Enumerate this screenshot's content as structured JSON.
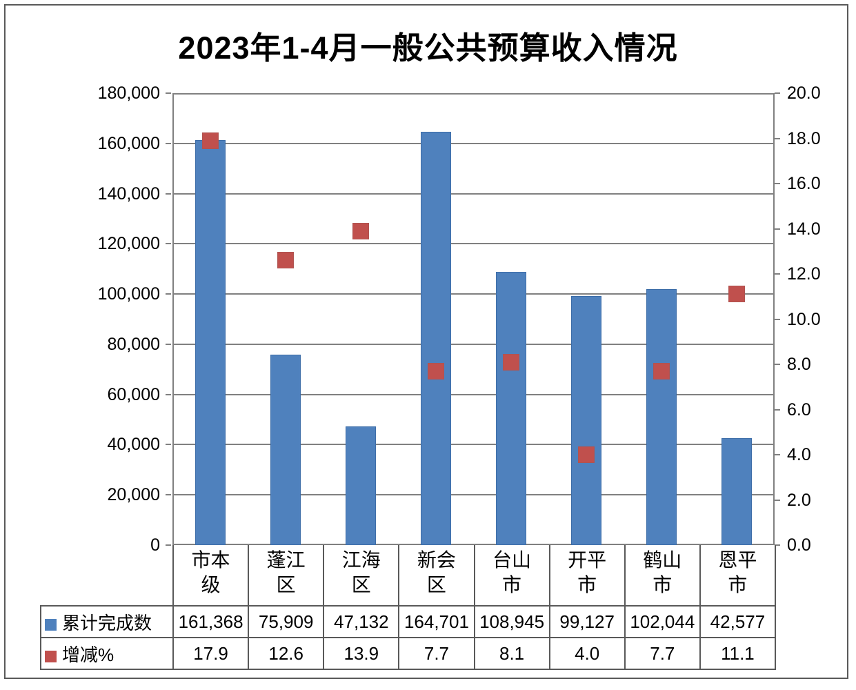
{
  "title": "2023年1-4月一般公共预算收入情况",
  "chart_data": {
    "type": "bar",
    "subtype": "combo-bar-with-square-markers-and-data-table",
    "title": "2023年1-4月一般公共预算收入情况",
    "categories": [
      "市本级",
      "蓬江区",
      "江海区",
      "新会区",
      "台山市",
      "开平市",
      "鹤山市",
      "恩平市"
    ],
    "categories_display": [
      "市本\n级",
      "蓬江\n区",
      "江海\n区",
      "新会\n区",
      "台山\n市",
      "开平\n市",
      "鹤山\n市",
      "恩平\n市"
    ],
    "series": [
      {
        "name": "累计完成数",
        "type": "bar",
        "axis": "left",
        "color": "#4F81BD",
        "values": [
          161368,
          75909,
          47132,
          164701,
          108945,
          99127,
          102044,
          42577
        ]
      },
      {
        "name": "增减%",
        "type": "scatter-square",
        "axis": "right",
        "color": "#C0504D",
        "values": [
          17.9,
          12.6,
          13.9,
          7.7,
          8.1,
          4.0,
          7.7,
          11.1
        ]
      }
    ],
    "left_axis": {
      "min": 0,
      "max": 180000,
      "step": 20000,
      "tick_labels": [
        "180,000",
        "160,000",
        "140,000",
        "120,000",
        "100,000",
        "80,000",
        "60,000",
        "40,000",
        "20,000",
        "0"
      ]
    },
    "right_axis": {
      "min": 0.0,
      "max": 20.0,
      "step": 2.0,
      "tick_labels": [
        "20.0",
        "18.0",
        "16.0",
        "14.0",
        "12.0",
        "10.0",
        "8.0",
        "6.0",
        "4.0",
        "2.0",
        "0.0"
      ]
    },
    "grid": true,
    "legend_position": "in-data-table-left"
  },
  "data_table": {
    "rows": [
      {
        "label": "累计完成数",
        "swatch_color": "#4F81BD",
        "values": [
          "161,368",
          "75,909",
          "47,132",
          "164,701",
          "108,945",
          "99,127",
          "102,044",
          "42,577"
        ]
      },
      {
        "label": "增减%",
        "swatch_color": "#C0504D",
        "values": [
          "17.9",
          "12.6",
          "13.9",
          "7.7",
          "8.1",
          "4.0",
          "7.7",
          "11.1"
        ]
      }
    ]
  },
  "colors": {
    "bar_fill": "#4F81BD",
    "bar_border": "#3D6DA8",
    "marker_fill": "#C0504D",
    "grid_line": "#808080",
    "table_border": "#595959",
    "outer_border": "#595959",
    "text": "#000000",
    "background": "#FFFFFF"
  }
}
